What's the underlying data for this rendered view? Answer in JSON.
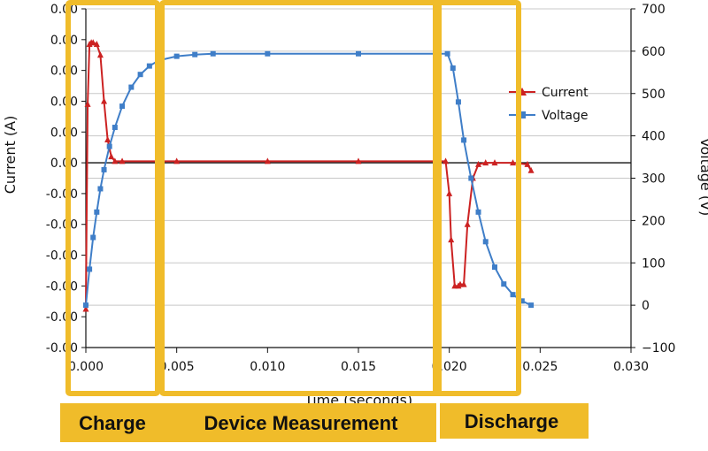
{
  "chart_data": {
    "type": "line",
    "xlabel": "Time (seconds)",
    "ylabel_left": "Current (A)",
    "ylabel_right": "Voltage (V)",
    "xlim": [
      0,
      0.03
    ],
    "x_ticks": [
      "0.000",
      "0.005",
      "0.010",
      "0.015",
      "0.020",
      "0.025",
      "0.030"
    ],
    "y_left_ticks": [
      "0.00",
      "0.00",
      "0.00",
      "0.00",
      "0.00",
      "0.00",
      "-0.00",
      "-0.00",
      "-0.00",
      "-0.00",
      "-0.00",
      "-0.00"
    ],
    "y_right_lim": [
      -100,
      700
    ],
    "y_right_ticks": [
      "700",
      "600",
      "500",
      "400",
      "300",
      "200",
      "100",
      "0",
      "-100"
    ],
    "y_left_tick_values": [
      0.01,
      0.008,
      0.006,
      0.004,
      0.002,
      0.0,
      -0.002,
      -0.004,
      -0.006,
      -0.008,
      -0.01,
      -0.012
    ],
    "y_left_lim": [
      -0.012,
      0.01
    ],
    "series": [
      {
        "name": "Current",
        "color": "#cc2222",
        "marker": "triangle",
        "axis": "left",
        "x": [
          0.0,
          0.0001,
          0.0002,
          0.0003,
          0.0004,
          0.0006,
          0.0008,
          0.001,
          0.0012,
          0.0014,
          0.0016,
          0.002,
          0.005,
          0.01,
          0.015,
          0.0198,
          0.02,
          0.0201,
          0.0203,
          0.0205,
          0.0206,
          0.0208,
          0.021,
          0.0213,
          0.0216,
          0.022,
          0.0225,
          0.0235,
          0.0243,
          0.0245
        ],
        "y": [
          -0.0095,
          0.0038,
          0.0077,
          0.0078,
          0.0078,
          0.0077,
          0.007,
          0.004,
          0.0015,
          0.0004,
          0.0001,
          0.0001,
          0.0001,
          0.0001,
          0.0001,
          0.0001,
          -0.002,
          -0.005,
          -0.008,
          -0.008,
          -0.0079,
          -0.0079,
          -0.004,
          -0.001,
          -0.0001,
          0.0,
          0.0,
          0.0,
          -0.0001,
          -0.0005
        ]
      },
      {
        "name": "Voltage",
        "color": "#3f7ec8",
        "marker": "square",
        "axis": "right",
        "x": [
          0.0,
          0.0002,
          0.0004,
          0.0006,
          0.0008,
          0.001,
          0.0013,
          0.0016,
          0.002,
          0.0025,
          0.003,
          0.0035,
          0.004,
          0.005,
          0.006,
          0.007,
          0.01,
          0.015,
          0.0199,
          0.0202,
          0.0205,
          0.0208,
          0.0212,
          0.0216,
          0.022,
          0.0225,
          0.023,
          0.0235,
          0.024,
          0.0245
        ],
        "y": [
          0,
          85,
          160,
          220,
          275,
          320,
          375,
          420,
          470,
          515,
          545,
          565,
          578,
          588,
          592,
          594,
          594,
          594,
          594,
          560,
          480,
          390,
          300,
          220,
          150,
          90,
          50,
          25,
          10,
          0
        ]
      }
    ],
    "legend_position": "right",
    "grid": "horizontal",
    "phase_labels": [
      "Charge",
      "Device Measurement",
      "Discharge"
    ]
  }
}
